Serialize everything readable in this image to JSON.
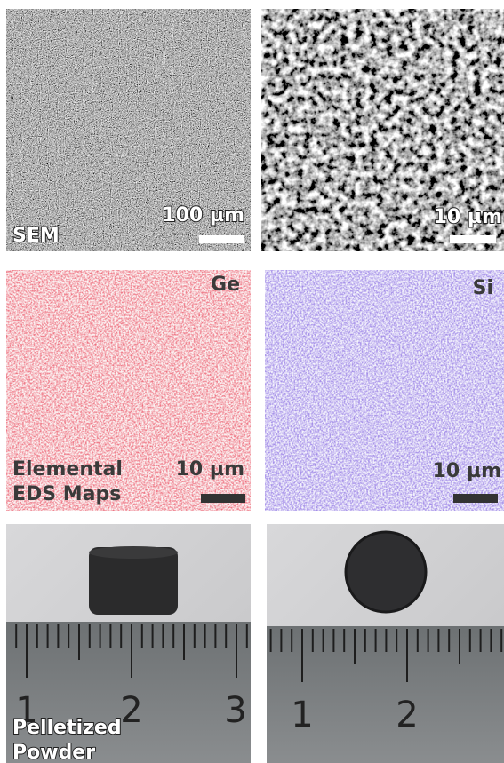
{
  "panels": [
    {
      "label": "SEM",
      "scale_label": "100 µm"
    },
    {
      "scale_label": "10 µm"
    },
    {
      "element": "Ge",
      "label_lines": [
        "Elemental",
        "EDS Maps"
      ],
      "scale_label": "10 µm"
    },
    {
      "element": "Si",
      "scale_label": "10 µm"
    },
    {
      "label_lines": [
        "Pelletized",
        "Powder"
      ],
      "ruler_numbers": [
        "1",
        "2",
        "3"
      ]
    },
    {
      "ruler_numbers": [
        "1",
        "2"
      ]
    }
  ]
}
